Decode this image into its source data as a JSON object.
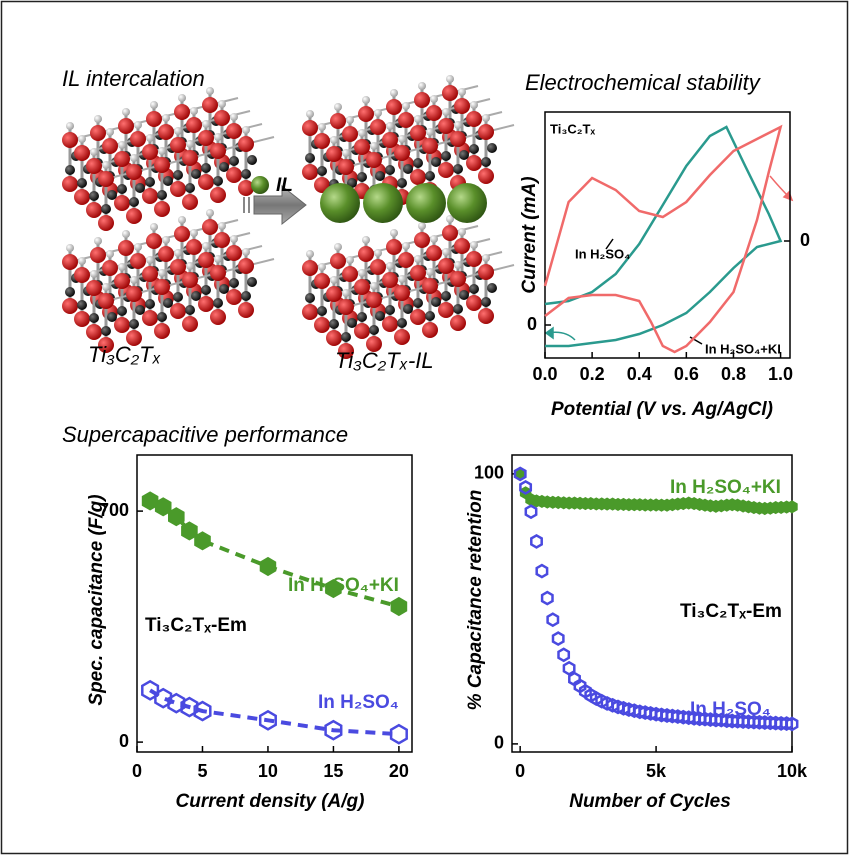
{
  "diagram": {
    "title": "IL intercalation",
    "left_label": "Ti₃C₂Tₓ",
    "arrow_label": "IL",
    "right_label": "Ti₃C₂Tₓ-IL"
  },
  "section_title": "Supercapacitive performance",
  "chart_data": [
    {
      "type": "line",
      "title": "Electrochemical stability",
      "x_label": "Potential (V vs. Ag/AgCl)",
      "y_label": "Current (mA)",
      "annotations": [
        "Ti₃C₂Tₓ"
      ],
      "xlim": [
        0,
        1.04
      ],
      "xticks": [
        {
          "value": 0,
          "label": "0.0"
        },
        0.2,
        0.4,
        0.6,
        0.8,
        {
          "value": 1,
          "label": "1.0"
        }
      ],
      "ylim": [
        -1.1,
        7.1
      ],
      "yticks": [
        0
      ],
      "y2lim": [
        -3.9,
        4.3
      ],
      "y2ticks": [
        0
      ],
      "series": [
        {
          "name": "In H₂SO₄",
          "color": "#2a9a8e",
          "x": [
            0,
            0.1,
            0.2,
            0.3,
            0.4,
            0.5,
            0.6,
            0.7,
            0.77,
            0.85,
            0.95,
            1.0,
            0.9,
            0.8,
            0.7,
            0.6,
            0.5,
            0.4,
            0.3,
            0.2,
            0.1,
            0
          ],
          "values": [
            0.7,
            0.8,
            1.1,
            1.7,
            2.7,
            4.0,
            5.3,
            6.3,
            6.6,
            5.3,
            3.7,
            2.8,
            2.6,
            1.9,
            1.1,
            0.4,
            0,
            -0.3,
            -0.5,
            -0.6,
            -0.7,
            -0.7
          ]
        },
        {
          "name": "In H₂SO₄+KI",
          "color": "#f06a6a",
          "axis": "y2",
          "x": [
            0,
            0.1,
            0.2,
            0.3,
            0.4,
            0.5,
            0.6,
            0.7,
            0.8,
            0.9,
            1.0,
            0.95,
            0.9,
            0.8,
            0.7,
            0.6,
            0.55,
            0.5,
            0.45,
            0.4,
            0.3,
            0.2,
            0.1,
            0
          ],
          "values": [
            -1.5,
            1.3,
            2.1,
            1.7,
            1.0,
            0.8,
            1.3,
            2.2,
            3.0,
            3.4,
            3.8,
            2.3,
            0.7,
            -1.7,
            -2.7,
            -3.5,
            -3.7,
            -3.5,
            -2.7,
            -2.0,
            -1.8,
            -1.8,
            -1.9,
            -2.5
          ]
        }
      ]
    },
    {
      "type": "scatter",
      "x_label": "Current density (A/g)",
      "y_label": "Spec. capacitance (F/g)",
      "annotations": [
        "Ti₃C₂Tₓ-Em"
      ],
      "marker": "hexagon",
      "line_style": "dashed",
      "xlim": [
        0,
        21
      ],
      "xticks": [
        0,
        5,
        10,
        15,
        20
      ],
      "ylim": [
        -30,
        870
      ],
      "yticks": [
        0,
        700
      ],
      "x": [
        1,
        2,
        3,
        4,
        5,
        10,
        15,
        20
      ],
      "series": [
        {
          "name": "In H₂SO₄+KI",
          "color": "#4a9a2a",
          "filled": true,
          "values": [
            731,
            713,
            683,
            640,
            610,
            532,
            465,
            411
          ]
        },
        {
          "name": "In H₂SO₄",
          "color": "#4a4ae0",
          "filled": false,
          "values": [
            157,
            133,
            118,
            106,
            94,
            66,
            36,
            24
          ]
        }
      ]
    },
    {
      "type": "scatter",
      "x_label": "Number of Cycles",
      "y_label": "% Capacitance retention",
      "annotations": [
        "Ti₃C₂Tₓ-Em"
      ],
      "marker": "hexagon",
      "xlim": [
        -300,
        10000
      ],
      "xticks": [
        0,
        {
          "value": 5000,
          "label": "5k"
        },
        {
          "value": 10000,
          "label": "10k"
        }
      ],
      "ylim": [
        -3,
        107
      ],
      "yticks": [
        0,
        100
      ],
      "x": [
        0,
        200,
        400,
        600,
        800,
        1000,
        1200,
        1400,
        1600,
        1800,
        2000,
        2200,
        2400,
        2600,
        2800,
        3000,
        3200,
        3400,
        3600,
        3800,
        4000,
        4200,
        4400,
        4600,
        4800,
        5000,
        5200,
        5400,
        5600,
        5800,
        6000,
        6200,
        6400,
        6600,
        6800,
        7000,
        7200,
        7400,
        7600,
        7800,
        8000,
        8200,
        8400,
        8600,
        8800,
        9000,
        9200,
        9400,
        9600,
        9800,
        10000
      ],
      "series": [
        {
          "name": "In H₂SO₄+KI",
          "color": "#4a9a2a",
          "filled": true,
          "values": [
            100,
            93,
            90.5,
            90,
            89.8,
            89.6,
            89.5,
            89.4,
            89.3,
            89.2,
            89.2,
            89.1,
            89,
            89,
            88.9,
            88.9,
            88.8,
            88.8,
            88.7,
            88.7,
            88.6,
            88.6,
            88.6,
            88.5,
            88.5,
            88.5,
            88.4,
            88.4,
            88.6,
            88.8,
            89,
            89.2,
            89,
            88.7,
            88.4,
            88.2,
            88,
            88.2,
            88.4,
            88.6,
            88.4,
            88.1,
            87.8,
            87.5,
            87.3,
            87.2,
            87.3,
            87.5,
            87.6,
            87.7,
            87.8
          ]
        },
        {
          "name": "In H₂SO₄",
          "color": "#4a4ae0",
          "filled": false,
          "values": [
            100,
            95,
            86,
            75,
            64,
            54,
            46,
            39,
            33,
            28,
            24,
            21.5,
            19.5,
            18,
            16.8,
            15.8,
            15,
            14.3,
            13.7,
            13.2,
            12.7,
            12.3,
            11.9,
            11.6,
            11.3,
            11,
            10.7,
            10.5,
            10.3,
            10.1,
            9.9,
            9.7,
            9.5,
            9.3,
            9.2,
            9,
            8.9,
            8.8,
            8.6,
            8.5,
            8.4,
            8.3,
            8.2,
            8.1,
            8,
            7.9,
            7.8,
            7.7,
            7.6,
            7.5,
            7.4
          ]
        }
      ]
    }
  ]
}
